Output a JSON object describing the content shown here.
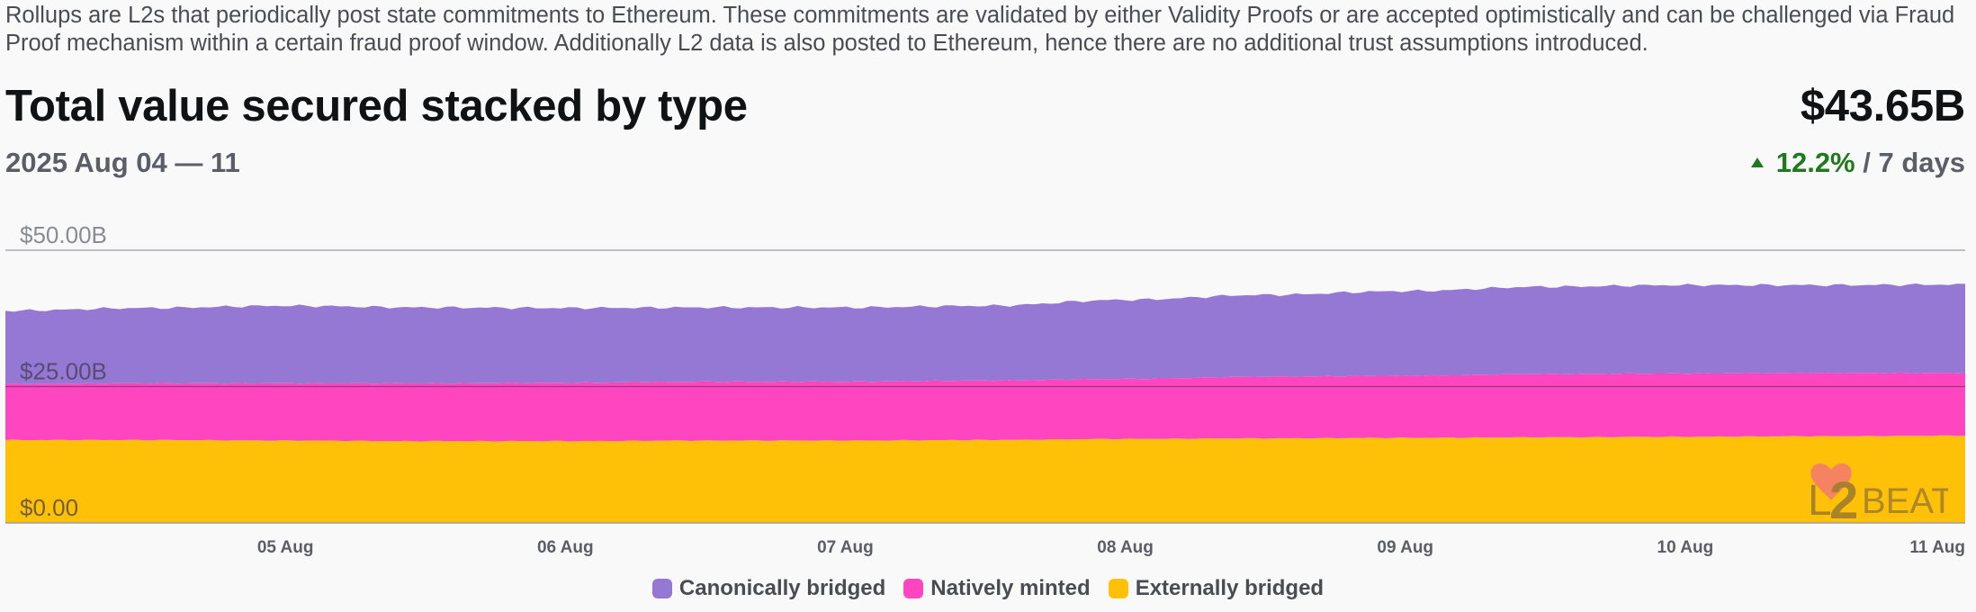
{
  "description": "Rollups are L2s that periodically post state commitments to Ethereum. These commitments are validated by either Validity Proofs or are accepted optimistically and can be challenged via Fraud Proof mechanism within a certain fraud proof window. Additionally L2 data is also posted to Ethereum, hence there are no additional trust assumptions introduced.",
  "header": {
    "title": "Total value secured stacked by type",
    "date_range": "2025 Aug 04 — 11",
    "total_value": "$43.65B",
    "change_percent": "12.2%",
    "change_period": "/ 7 days"
  },
  "logo_text": "L2BEAT",
  "colors": {
    "canonical": "#9577d4",
    "native": "#ff46c0",
    "external": "#ffc107",
    "up": "#1f7a1f"
  },
  "chart_data": {
    "type": "area",
    "stacked": true,
    "x_start": "2025-08-04 (00:00)",
    "x_end": "2025-08-11 (00:00)",
    "xticks": [
      "05 Aug",
      "06 Aug",
      "07 Aug",
      "08 Aug",
      "09 Aug",
      "10 Aug",
      "11 Aug"
    ],
    "yticks": [
      "$0.00",
      "$25.00B",
      "$50.00B"
    ],
    "ylim": [
      0,
      50
    ],
    "y_unit": "B USD",
    "grid": true,
    "legend_position": "bottom-center",
    "x_days": [
      0,
      0.5,
      1,
      1.5,
      2,
      2.5,
      3,
      3.5,
      4,
      4.5,
      5,
      5.5,
      6,
      6.5,
      7
    ],
    "series": [
      {
        "name": "Externally bridged",
        "color": "#ffc107",
        "values": [
          15.2,
          15.2,
          15.1,
          15.0,
          15.0,
          15.1,
          15.1,
          15.2,
          15.4,
          15.5,
          15.6,
          15.7,
          15.8,
          15.9,
          16.0
        ]
      },
      {
        "name": "Natively minted",
        "color": "#ff46c0",
        "values": [
          10.3,
          10.4,
          10.5,
          10.6,
          10.7,
          10.8,
          10.8,
          10.9,
          11.0,
          11.3,
          11.4,
          11.6,
          11.6,
          11.6,
          11.5
        ]
      },
      {
        "name": "Canonically bridged",
        "color": "#9577d4",
        "values": [
          13.4,
          13.8,
          14.2,
          13.9,
          13.7,
          13.6,
          13.6,
          13.7,
          14.5,
          15.0,
          15.5,
          16.0,
          16.2,
          16.1,
          16.2
        ]
      }
    ],
    "legend": [
      "Canonically bridged",
      "Natively minted",
      "Externally bridged"
    ]
  }
}
